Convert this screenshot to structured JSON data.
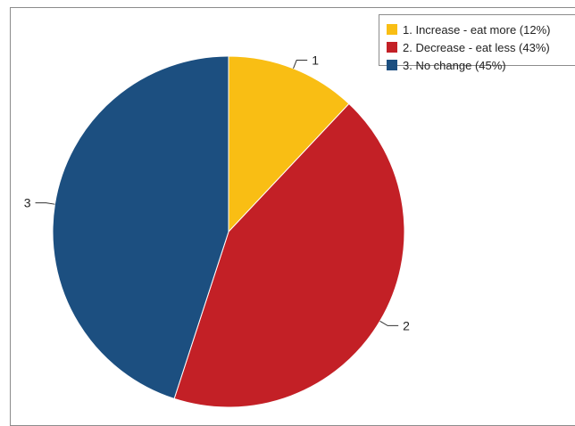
{
  "chart_data": {
    "type": "pie",
    "title": "",
    "slices": [
      {
        "label": "1",
        "legend": "1. Increase - eat more (12%)",
        "value": 12,
        "color": "#F9BE14"
      },
      {
        "label": "2",
        "legend": "2. Decrease - eat less (43%)",
        "value": 43,
        "color": "#C32026"
      },
      {
        "label": "3",
        "legend": "3. No change (45%)",
        "value": 45,
        "color": "#1C4F80"
      }
    ],
    "start_angle_deg": 0,
    "direction": "clockwise",
    "legend_position": "top-right"
  }
}
